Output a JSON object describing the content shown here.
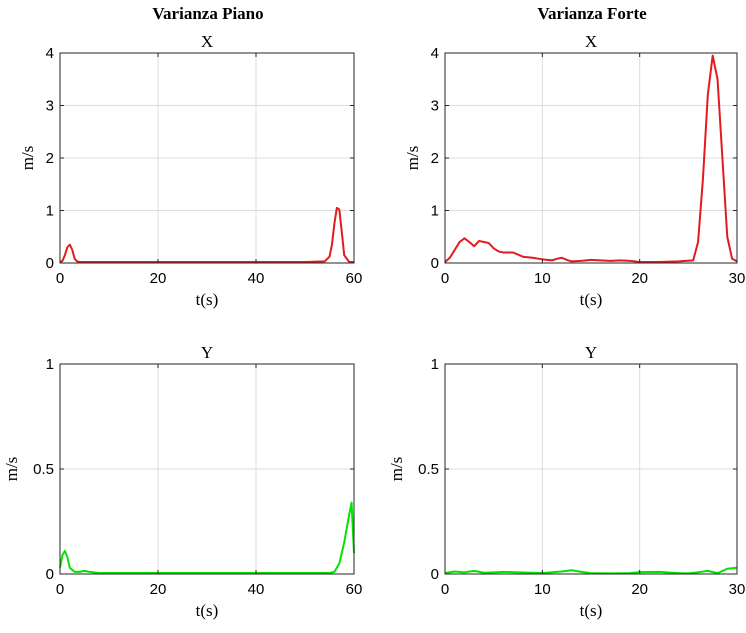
{
  "figure": {
    "col_titles": [
      "Varianza Piano",
      "Varianza Forte"
    ]
  },
  "chart_data": [
    {
      "type": "line",
      "title": "X",
      "xlabel": "t(s)",
      "ylabel": "m/s",
      "xlim": [
        0,
        60
      ],
      "ylim": [
        0,
        4
      ],
      "xticks": [
        0,
        20,
        40,
        60
      ],
      "yticks": [
        0,
        1,
        2,
        3,
        4
      ],
      "grid": true,
      "series": [
        {
          "color": "#e41a1c",
          "x": [
            0,
            0.5,
            1,
            1.5,
            2,
            2.5,
            3,
            3.5,
            4,
            6,
            10,
            20,
            30,
            40,
            50,
            54,
            55,
            55.5,
            56,
            56.5,
            57,
            57.5,
            58,
            59,
            60
          ],
          "y": [
            0.02,
            0.04,
            0.15,
            0.3,
            0.35,
            0.25,
            0.08,
            0.03,
            0.02,
            0.02,
            0.02,
            0.02,
            0.02,
            0.02,
            0.02,
            0.03,
            0.12,
            0.35,
            0.75,
            1.05,
            1.02,
            0.6,
            0.15,
            0.02,
            0.02
          ]
        }
      ]
    },
    {
      "type": "line",
      "title": "X",
      "xlabel": "t(s)",
      "ylabel": "m/s",
      "xlim": [
        0,
        30
      ],
      "ylim": [
        0,
        4
      ],
      "xticks": [
        0,
        10,
        20,
        30
      ],
      "yticks": [
        0,
        1,
        2,
        3,
        4
      ],
      "grid": true,
      "series": [
        {
          "color": "#e41a1c",
          "x": [
            0,
            0.5,
            1,
            1.5,
            2,
            2.5,
            3,
            3.5,
            4,
            4.5,
            5,
            5.5,
            6,
            7,
            8,
            9,
            10,
            11,
            11.5,
            12,
            12.5,
            13,
            14,
            15,
            16,
            17,
            18,
            19,
            20,
            22,
            24,
            25.5,
            26,
            26.5,
            27,
            27.5,
            28,
            28.5,
            29,
            29.5,
            30
          ],
          "y": [
            0.02,
            0.1,
            0.25,
            0.4,
            0.47,
            0.4,
            0.32,
            0.42,
            0.4,
            0.38,
            0.28,
            0.22,
            0.2,
            0.2,
            0.12,
            0.1,
            0.07,
            0.05,
            0.08,
            0.1,
            0.06,
            0.03,
            0.04,
            0.06,
            0.05,
            0.04,
            0.05,
            0.04,
            0.02,
            0.02,
            0.03,
            0.05,
            0.4,
            1.6,
            3.2,
            3.95,
            3.5,
            2.0,
            0.5,
            0.08,
            0.03
          ]
        }
      ]
    },
    {
      "type": "line",
      "title": "Y",
      "xlabel": "t(s)",
      "ylabel": "m/s",
      "xlim": [
        0,
        60
      ],
      "ylim": [
        0,
        1
      ],
      "xticks": [
        0,
        20,
        40,
        60
      ],
      "yticks": [
        0,
        0.5,
        1
      ],
      "grid": true,
      "series": [
        {
          "color": "#00e400",
          "x": [
            0,
            0.5,
            1,
            1.5,
            2,
            3,
            4,
            5,
            6,
            8,
            10,
            20,
            30,
            40,
            50,
            55,
            56,
            57,
            58,
            59,
            59.5,
            60
          ],
          "y": [
            0.03,
            0.09,
            0.11,
            0.08,
            0.03,
            0.01,
            0.01,
            0.015,
            0.01,
            0.005,
            0.005,
            0.005,
            0.005,
            0.005,
            0.005,
            0.005,
            0.01,
            0.05,
            0.15,
            0.28,
            0.34,
            0.1
          ]
        }
      ]
    },
    {
      "type": "line",
      "title": "Y",
      "xlabel": "t(s)",
      "ylabel": "m/s",
      "xlim": [
        0,
        30
      ],
      "ylim": [
        0,
        1
      ],
      "xticks": [
        0,
        10,
        20,
        30
      ],
      "yticks": [
        0,
        0.5,
        1
      ],
      "grid": true,
      "series": [
        {
          "color": "#00e400",
          "x": [
            0,
            1,
            2,
            3,
            4,
            5,
            6,
            8,
            10,
            12,
            13,
            14,
            15,
            17,
            19,
            20,
            22,
            24,
            25,
            26,
            27,
            28,
            29,
            30
          ],
          "y": [
            0.005,
            0.012,
            0.008,
            0.015,
            0.006,
            0.008,
            0.01,
            0.007,
            0.005,
            0.012,
            0.018,
            0.01,
            0.004,
            0.003,
            0.004,
            0.009,
            0.01,
            0.004,
            0.003,
            0.008,
            0.015,
            0.004,
            0.025,
            0.03
          ]
        }
      ]
    }
  ]
}
